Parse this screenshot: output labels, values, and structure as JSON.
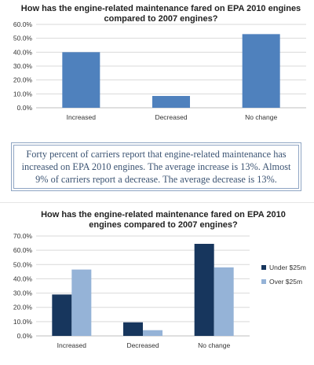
{
  "chart_data": [
    {
      "type": "bar",
      "title_lines": [
        "How has the engine-related maintenance fared on EPA 2010 engines",
        "compared to 2007 engines?"
      ],
      "categories": [
        "Increased",
        "Decreased",
        "No change"
      ],
      "series": [
        {
          "values": [
            40.0,
            8.5,
            53.0
          ],
          "color": "#4f81bd"
        }
      ],
      "yticks": [
        "0.0%",
        "10.0%",
        "20.0%",
        "30.0%",
        "40.0%",
        "50.0%",
        "60.0%"
      ],
      "ylim": [
        0,
        60
      ],
      "grid": true,
      "legend": "none"
    },
    {
      "type": "bar",
      "title_lines": [
        "How has the engine-related maintenance fared on EPA 2010",
        "engines compared to 2007 engines?"
      ],
      "categories": [
        "Increased",
        "Decreased",
        "No change"
      ],
      "series": [
        {
          "name": "Under $25m",
          "values": [
            29.0,
            9.5,
            64.5
          ],
          "color": "#17365d"
        },
        {
          "name": "Over $25m",
          "values": [
            46.5,
            4.0,
            48.0
          ],
          "color": "#95b3d7"
        }
      ],
      "yticks": [
        "0.0%",
        "10.0%",
        "20.0%",
        "30.0%",
        "40.0%",
        "50.0%",
        "60.0%",
        "70.0%"
      ],
      "ylim": [
        0,
        70
      ],
      "grid": true,
      "legend": "right"
    }
  ],
  "summary": {
    "text": "Forty percent of carriers report that engine-related maintenance has increased on EPA 2010 engines. The average increase is 13%. Almost 9% of carriers report a decrease. The average decrease is 13%."
  }
}
